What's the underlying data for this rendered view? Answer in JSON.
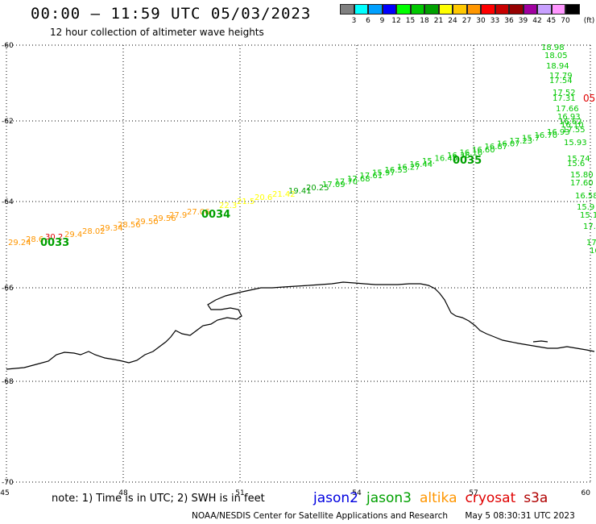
{
  "header": {
    "title": "00:00 – 11:59 UTC 05/03/2023",
    "subtitle": "12 hour collection of altimeter wave heights"
  },
  "colorbar": {
    "unit": "(ft)",
    "cells": [
      "#808080",
      "#00ffff",
      "#00a0ff",
      "#0000ff",
      "#00ff00",
      "#00c800",
      "#00a000",
      "#ffff00",
      "#ffc800",
      "#ff9600",
      "#ff0000",
      "#c80000",
      "#960000",
      "#a000a0",
      "#c8a0ff",
      "#ff96ff",
      "#000000"
    ],
    "labels": [
      "3",
      "6",
      "9",
      "12",
      "15",
      "18",
      "21",
      "24",
      "27",
      "30",
      "33",
      "36",
      "39",
      "42",
      "45",
      "70"
    ]
  },
  "axes": {
    "lon_ticks": [
      "45",
      "48",
      "51",
      "54",
      "57",
      "60"
    ],
    "lat_ticks": [
      "-60",
      "-62",
      "-64",
      "-66",
      "-68",
      "-70"
    ]
  },
  "track_labels": {
    "time_marks": [
      "0033",
      "0034",
      "0035"
    ],
    "orange": [
      "29.24",
      "28.6",
      "29.4",
      "28.02",
      "29.34",
      "28.56",
      "29.50",
      "29.56",
      "27.9",
      "27.06"
    ],
    "red": [
      "30.2"
    ],
    "yellow": [
      "22.3",
      "21.5",
      "20.6",
      "21.42"
    ],
    "darkgreen": [
      "19.41",
      "20.25"
    ],
    "green_diag": [
      "17.09",
      "17.70",
      "17.68",
      "17.61",
      "15.97",
      "16.53",
      "16.27",
      "16.44",
      "15.",
      "16.45",
      "16.36",
      "16.16",
      "16.60",
      "16.87",
      "16.07",
      "17.23",
      "15.7",
      "16.70",
      "16.93"
    ],
    "green_right": [
      "18.98",
      "18.05",
      "18.94",
      "17.79",
      "17.54",
      "17.52",
      "17.31",
      "17.66",
      "16.93",
      "16.62",
      "16.10",
      "17.55",
      "15.93",
      "15.74",
      "15.6",
      "15.80",
      "17.60",
      "16.58",
      "15.9",
      "15.1",
      "17.",
      "17",
      "16"
    ],
    "red_right": [
      "05"
    ]
  },
  "footer": {
    "note": "note: 1) Time is in UTC; 2) SWH is in feet",
    "satellites": [
      {
        "name": "jason2",
        "color": "#0000e0"
      },
      {
        "name": "jason3",
        "color": "#00a000"
      },
      {
        "name": "altika",
        "color": "#ff9600"
      },
      {
        "name": "cryosat",
        "color": "#e00000"
      },
      {
        "name": "s3a",
        "color": "#b00000"
      }
    ],
    "credit": "NOAA/NESDIS Center for Satellite Applications and Research",
    "timestamp": "May  5 08:30:31 UTC 2023"
  }
}
